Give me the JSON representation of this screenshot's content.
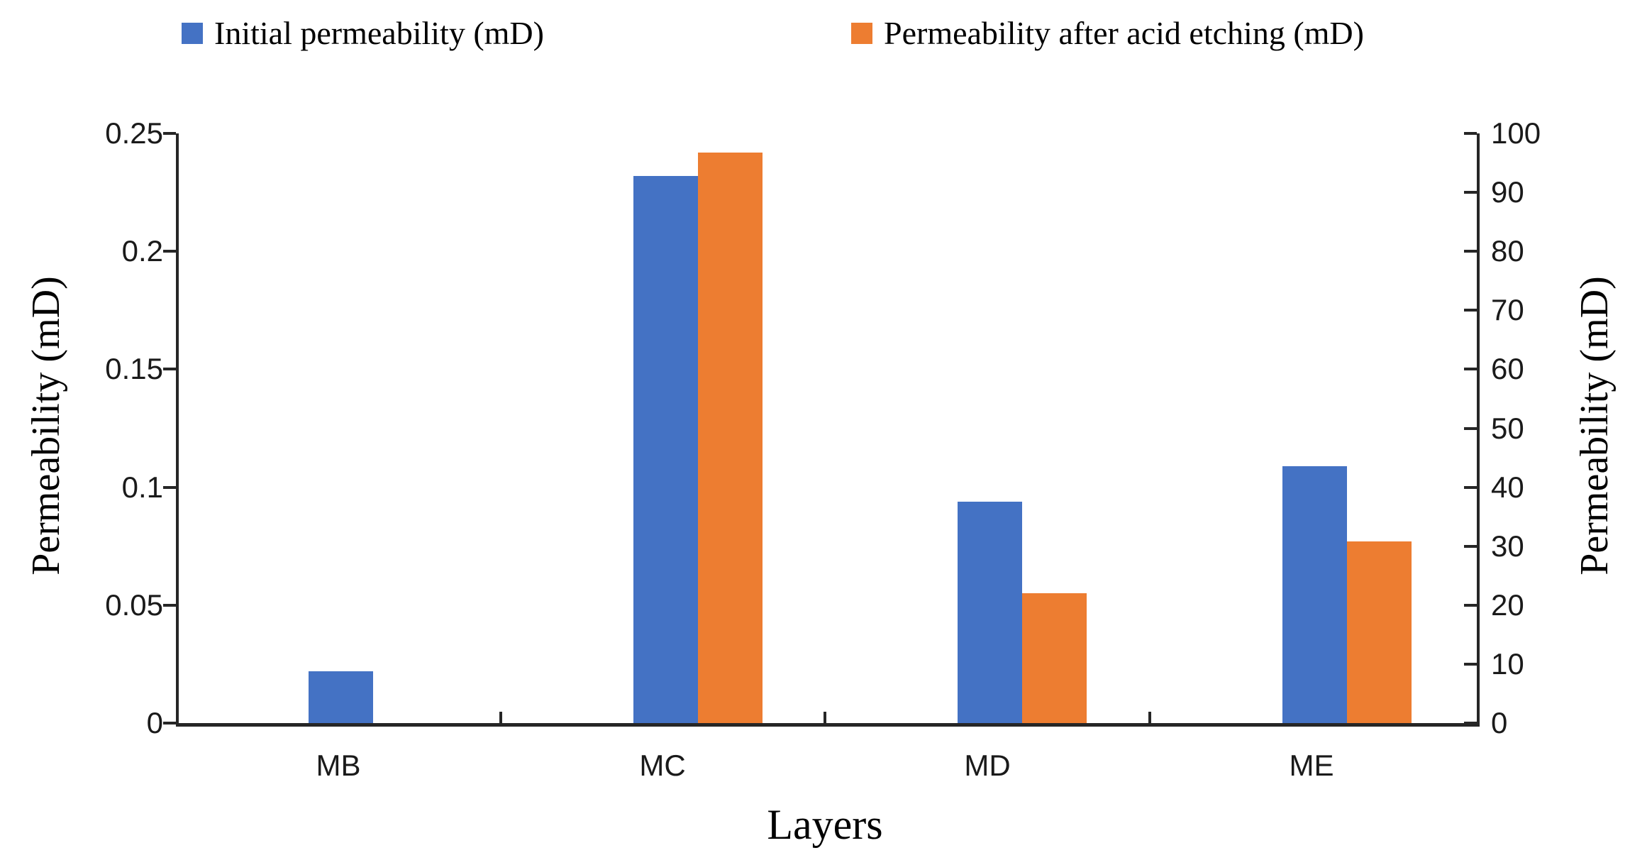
{
  "chart_data": {
    "type": "bar",
    "title": "",
    "categories": [
      "MB",
      "MC",
      "MD",
      "ME"
    ],
    "series": [
      {
        "name": "Initial permeability (mD)",
        "color": "#4472C4",
        "values": [
          0.022,
          0.232,
          0.094,
          0.109
        ],
        "right_axis_equivalent": [
          8.8,
          92.8,
          37.6,
          43.6
        ]
      },
      {
        "name": "Permeability after acid etching (mD)",
        "color": "#ED7D31",
        "values": [
          0,
          0.242,
          0.055,
          0.077
        ],
        "right_axis_equivalent": [
          0,
          96.8,
          22.0,
          30.8
        ]
      }
    ],
    "xlabel": "Layers",
    "left_axis": {
      "label": "Permeability (mD)",
      "min": 0,
      "max": 0.25,
      "ticks": [
        "0.25",
        "0.2",
        "0.15",
        "0.1",
        "0.05",
        "0"
      ]
    },
    "right_axis": {
      "label": "Permeability (mD)",
      "min": 0,
      "max": 100,
      "ticks": [
        "100",
        "90",
        "80",
        "70",
        "60",
        "50",
        "40",
        "30",
        "20",
        "10",
        "0"
      ]
    },
    "grid": false,
    "legend_position": "top",
    "notes": "Clustered bars, no bar drawn for MB in the acid-etching series"
  },
  "colors": {
    "bar_blue": "#4472C4",
    "bar_orange": "#ED7D31",
    "axis_line": "#262626",
    "text": "#000000"
  }
}
